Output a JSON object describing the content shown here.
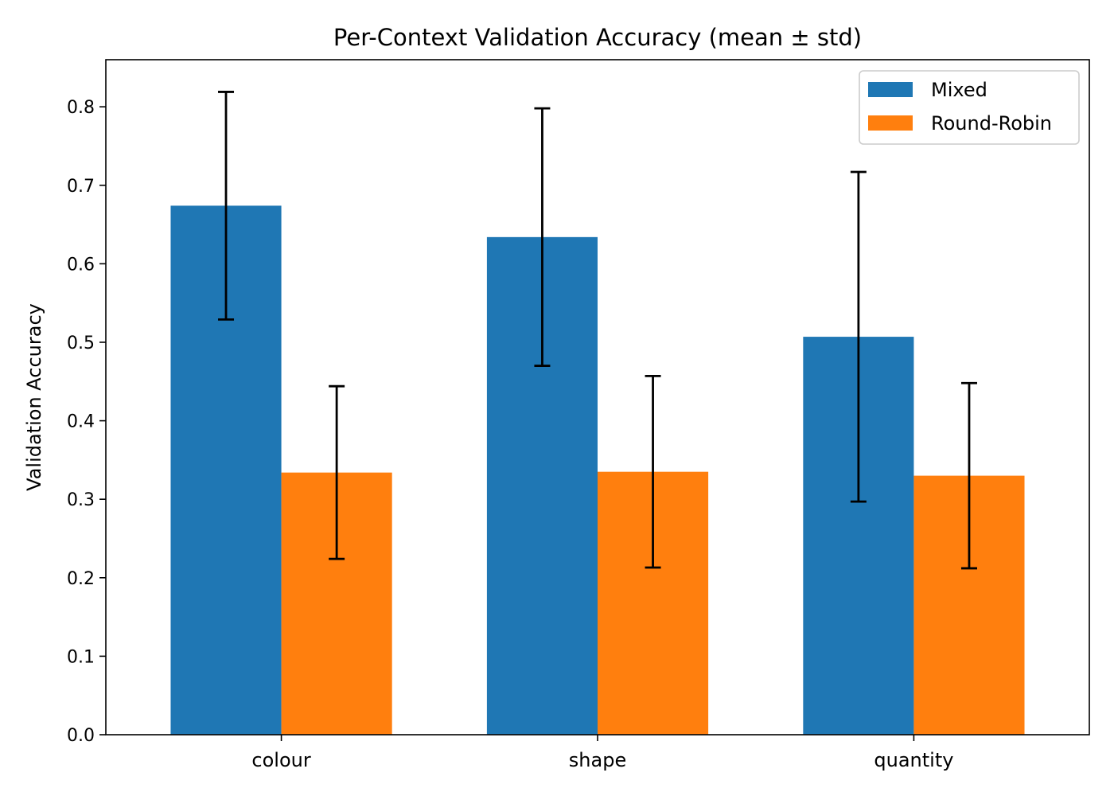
{
  "chart_data": {
    "type": "bar",
    "title": "Per-Context Validation Accuracy (mean ± std)",
    "xlabel": "",
    "ylabel": "Validation Accuracy",
    "categories": [
      "colour",
      "shape",
      "quantity"
    ],
    "series": [
      {
        "name": "Mixed",
        "color": "#1f77b4",
        "values": [
          0.674,
          0.634,
          0.507
        ],
        "err": [
          0.145,
          0.164,
          0.21
        ]
      },
      {
        "name": "Round-Robin",
        "color": "#ff7f0e",
        "values": [
          0.334,
          0.335,
          0.33
        ],
        "err": [
          0.11,
          0.122,
          0.118
        ]
      }
    ],
    "ylim": [
      0,
      0.86
    ],
    "yticks": [
      "0.0",
      "0.1",
      "0.2",
      "0.3",
      "0.4",
      "0.5",
      "0.6",
      "0.7",
      "0.8"
    ],
    "grid": false,
    "legend": "top-right"
  }
}
